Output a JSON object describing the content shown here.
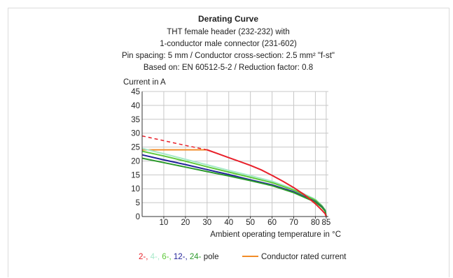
{
  "chart_data": {
    "type": "line",
    "title": "Derating Curve",
    "subtitle_lines": [
      "THT female header (232-232) with",
      "1-conductor male connector (231-602)",
      "Pin spacing: 5 mm / Conductor cross-section: 2.5 mm² \"f-st\"",
      "Based on: EN 60512-5-2 / Reduction factor: 0.8"
    ],
    "ylabel": "Current in A",
    "xlabel": "Ambient operating temperature in °C",
    "xlim": [
      0,
      86
    ],
    "ylim": [
      0,
      45
    ],
    "x_ticks": [
      10,
      20,
      30,
      40,
      50,
      60,
      70,
      80,
      85
    ],
    "y_ticks": [
      0,
      5,
      10,
      15,
      20,
      25,
      30,
      35,
      40,
      45
    ],
    "grid": true,
    "series": [
      {
        "name": "2-",
        "color": "#e8202a",
        "x": [
          30,
          35,
          40,
          45,
          50,
          55,
          60,
          65,
          70,
          75,
          80,
          83,
          84.5,
          85
        ],
        "y": [
          24,
          22.6,
          21.2,
          19.8,
          18.4,
          16.8,
          14.8,
          12.7,
          10.4,
          7.8,
          4.6,
          2.3,
          1,
          0
        ]
      },
      {
        "name": "2- (extrapolated)",
        "color": "#e8202a",
        "dashed": true,
        "x": [
          0,
          10,
          20,
          30
        ],
        "y": [
          29,
          27.3,
          25.6,
          24
        ]
      },
      {
        "name": "4-",
        "color": "#a6e9c9",
        "x": [
          0,
          10,
          20,
          30,
          40,
          50,
          60,
          70,
          80,
          83,
          84.5,
          85
        ],
        "y": [
          24.5,
          22.6,
          20.6,
          18.6,
          16.6,
          14.7,
          12.7,
          9.9,
          6.2,
          4.0,
          2.4,
          0
        ]
      },
      {
        "name": "6-",
        "color": "#5ec93a",
        "x": [
          0,
          10,
          20,
          30,
          40,
          50,
          60,
          70,
          80,
          83,
          84.5,
          85
        ],
        "y": [
          23.5,
          21.8,
          19.9,
          17.9,
          16.0,
          14.1,
          12.2,
          9.5,
          5.9,
          3.8,
          2.2,
          0
        ]
      },
      {
        "name": "12-",
        "color": "#22229a",
        "x": [
          0,
          10,
          20,
          30,
          40,
          50,
          60,
          70,
          80,
          83,
          84.5,
          85
        ],
        "y": [
          22.2,
          20.4,
          18.7,
          16.9,
          15.1,
          13.2,
          11.4,
          8.9,
          5.4,
          3.5,
          2.0,
          0
        ]
      },
      {
        "name": "24-",
        "color": "#2b9a2b",
        "x": [
          0,
          10,
          20,
          30,
          40,
          50,
          60,
          70,
          80,
          83,
          84.5,
          85
        ],
        "y": [
          21.0,
          19.4,
          17.8,
          16.2,
          14.6,
          12.9,
          11.1,
          8.6,
          5.2,
          3.3,
          1.9,
          0
        ]
      },
      {
        "name": "Conductor rated current",
        "color": "#f28c28",
        "x": [
          0,
          30
        ],
        "y": [
          24,
          24
        ]
      }
    ],
    "legend": {
      "placement": "bottom",
      "pole_label": "pole",
      "pole_items": [
        {
          "text": "2-",
          "color": "#e8202a"
        },
        {
          "text": "4-",
          "color": "#a6e9c9"
        },
        {
          "text": "6-",
          "color": "#5ec93a"
        },
        {
          "text": "12-",
          "color": "#22229a"
        },
        {
          "text": "24-",
          "color": "#2b9a2b"
        }
      ],
      "line_item": {
        "text": "Conductor rated current",
        "color": "#f28c28"
      }
    }
  }
}
